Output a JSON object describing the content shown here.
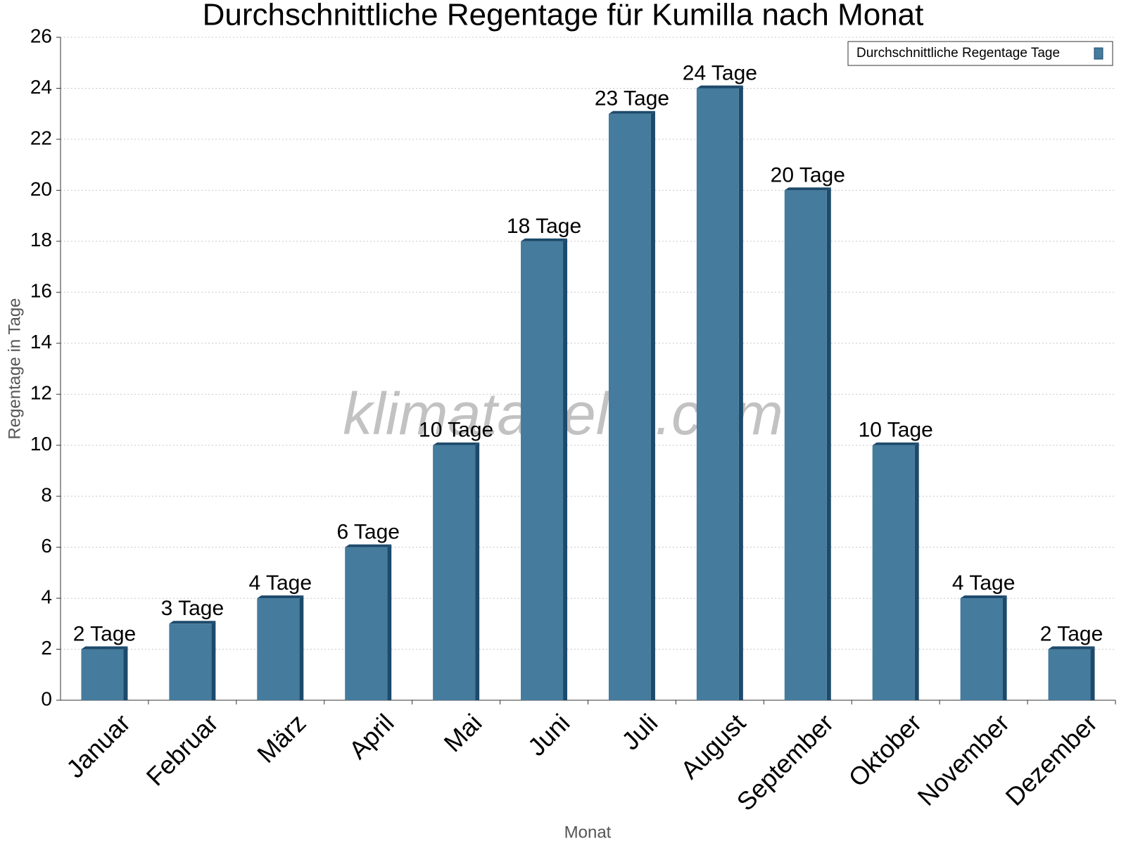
{
  "chart_data": {
    "type": "bar",
    "title": "Durchschnittliche Regentage für Kumilla nach Monat",
    "x_label": "Monat",
    "y_label": "Regentage in Tage",
    "watermark": "klimatabelle.com",
    "categories": [
      "Januar",
      "Februar",
      "März",
      "April",
      "Mai",
      "Juni",
      "Juli",
      "August",
      "September",
      "Oktober",
      "November",
      "Dezember"
    ],
    "series": [
      {
        "name": "Durchschnittliche Regentage Tage",
        "color": "#457b9d",
        "values": [
          2,
          3,
          4,
          6,
          10,
          18,
          23,
          24,
          20,
          10,
          4,
          2
        ],
        "value_labels": [
          "2 Tage",
          "3 Tage",
          "4 Tage",
          "6 Tage",
          "10 Tage",
          "18 Tage",
          "23 Tage",
          "24 Tage",
          "20 Tage",
          "10 Tage",
          "4 Tage",
          "2 Tage"
        ]
      }
    ],
    "ylim": [
      0,
      26
    ],
    "yticks": [
      0,
      2,
      4,
      6,
      8,
      10,
      12,
      14,
      16,
      18,
      20,
      22,
      24,
      26
    ],
    "grid": true,
    "legend": "top-right"
  }
}
